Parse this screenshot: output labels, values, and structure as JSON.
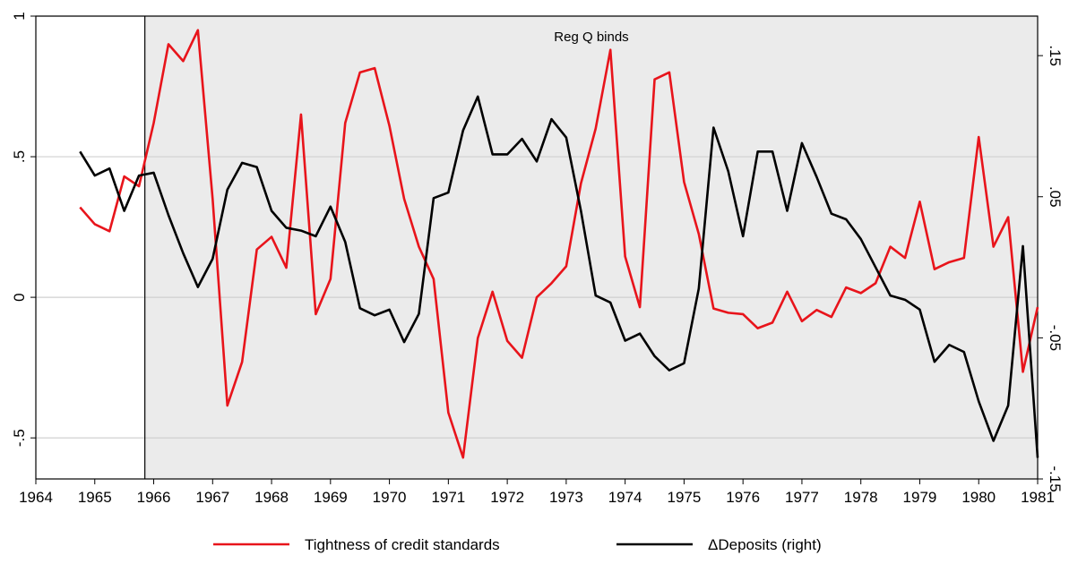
{
  "chart_data": {
    "type": "line",
    "annotation": "Reg Q binds",
    "shade_from": 1965.85,
    "x": [
      1964.75,
      1965,
      1965.25,
      1965.5,
      1965.75,
      1966,
      1966.25,
      1966.5,
      1966.75,
      1967,
      1967.25,
      1967.5,
      1967.75,
      1968,
      1968.25,
      1968.5,
      1968.75,
      1969,
      1969.25,
      1969.5,
      1969.75,
      1970,
      1970.25,
      1970.5,
      1970.75,
      1971,
      1971.25,
      1971.5,
      1971.75,
      1972,
      1972.25,
      1972.5,
      1972.75,
      1973,
      1973.25,
      1973.5,
      1973.75,
      1974,
      1974.25,
      1974.5,
      1974.75,
      1975,
      1975.25,
      1975.5,
      1975.75,
      1976,
      1976.25,
      1976.5,
      1976.75,
      1977,
      1977.25,
      1977.5,
      1977.75,
      1978,
      1978.25,
      1978.5,
      1978.75,
      1979,
      1979.25,
      1979.5,
      1979.75,
      1980,
      1980.25,
      1980.5,
      1980.75,
      1981
    ],
    "series": [
      {
        "name": "Tightness of credit standards",
        "color": "#e8141b",
        "values": [
          0.32,
          0.26,
          0.235,
          0.43,
          0.395,
          0.62,
          0.9,
          0.84,
          0.95,
          0.35,
          -0.385,
          -0.23,
          0.17,
          0.215,
          0.105,
          0.65,
          -0.06,
          0.065,
          0.62,
          0.8,
          0.815,
          0.61,
          0.35,
          0.18,
          0.065,
          -0.41,
          -0.57,
          -0.145,
          0.02,
          -0.155,
          -0.215,
          0.0,
          0.05,
          0.11,
          0.405,
          0.6,
          0.88,
          0.145,
          -0.035,
          0.775,
          0.8,
          0.41,
          0.225,
          -0.04,
          -0.055,
          -0.06,
          -0.11,
          -0.09,
          0.02,
          -0.085,
          -0.045,
          -0.07,
          0.035,
          0.015,
          0.05,
          0.18,
          0.14,
          0.34,
          0.1,
          0.125,
          0.14,
          0.57,
          0.18,
          0.285,
          -0.265,
          -0.035
        ]
      },
      {
        "name": "ΔDeposits (right)",
        "color": "#000000",
        "axis": "y2",
        "values": [
          0.082,
          0.065,
          0.07,
          0.04,
          0.065,
          0.067,
          0.037,
          0.01,
          -0.014,
          0.006,
          0.055,
          0.074,
          0.071,
          0.04,
          0.028,
          0.026,
          0.022,
          0.043,
          0.018,
          -0.029,
          -0.034,
          -0.03,
          -0.053,
          -0.033,
          0.049,
          0.053,
          0.097,
          0.121,
          0.08,
          0.08,
          0.091,
          0.075,
          0.105,
          0.092,
          0.04,
          -0.02,
          -0.025,
          -0.052,
          -0.047,
          -0.063,
          -0.073,
          -0.068,
          -0.015,
          0.099,
          0.068,
          0.022,
          0.082,
          0.082,
          0.04,
          0.088,
          0.064,
          0.038,
          0.034,
          0.02,
          0.0,
          -0.02,
          -0.023,
          -0.03,
          -0.067,
          -0.055,
          -0.06,
          -0.095,
          -0.123,
          -0.098,
          0.015,
          -0.135
        ]
      }
    ],
    "xlim": [
      1964,
      1981
    ],
    "xticks": [
      1964,
      1965,
      1966,
      1967,
      1968,
      1969,
      1970,
      1971,
      1972,
      1973,
      1974,
      1975,
      1976,
      1977,
      1978,
      1979,
      1980,
      1981
    ],
    "ylim": [
      -0.646,
      1
    ],
    "yticks": [
      {
        "value": -0.5,
        "label": "-.5"
      },
      0,
      {
        "value": 0.5,
        "label": ".5"
      },
      1
    ],
    "y2lim": [
      -0.15,
      0.178
    ],
    "y2ticks": [
      {
        "value": -0.15,
        "label": "-.15"
      },
      {
        "value": -0.05,
        "label": "-.05"
      },
      {
        "value": 0.05,
        "label": ".05"
      },
      {
        "value": 0.15,
        "label": ".15"
      }
    ],
    "grid": true
  }
}
